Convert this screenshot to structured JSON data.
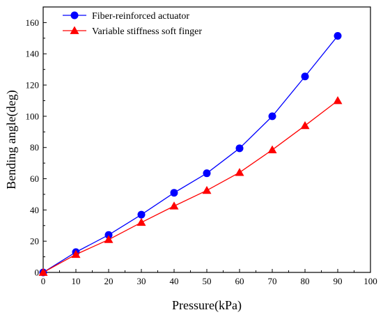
{
  "chart_data": {
    "type": "line",
    "xlabel": "Pressure(kPa)",
    "ylabel": "Bending angle(deg)",
    "xlim": [
      0,
      100
    ],
    "ylim": [
      0,
      170
    ],
    "xticks": [
      0,
      10,
      20,
      30,
      40,
      50,
      60,
      70,
      80,
      90,
      100
    ],
    "yticks": [
      0,
      20,
      40,
      60,
      80,
      100,
      120,
      140,
      160
    ],
    "x": [
      0,
      10,
      20,
      30,
      40,
      50,
      60,
      70,
      80,
      90
    ],
    "legend_position": "top-left",
    "grid": false,
    "series": [
      {
        "name": "Fiber-reinforced actuator",
        "color": "#0000ff",
        "marker": "circle",
        "values": [
          0,
          13,
          24,
          37,
          51,
          63.5,
          79.5,
          100,
          125.5,
          151.5
        ]
      },
      {
        "name": "Variable stiffness soft finger",
        "color": "#ff0000",
        "marker": "triangle",
        "values": [
          0,
          11.5,
          21,
          32,
          42.5,
          52.5,
          64,
          78.5,
          94,
          110
        ]
      }
    ]
  }
}
